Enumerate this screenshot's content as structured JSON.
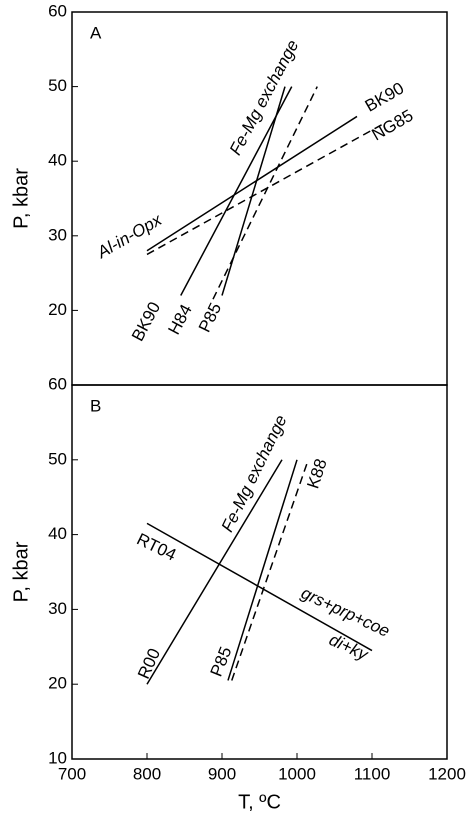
{
  "chart_data": [
    {
      "type": "line",
      "label": "A",
      "ylabel": "P, kbar",
      "xlim": [
        700,
        1200
      ],
      "ylim": [
        10,
        60
      ],
      "yticks": [
        20,
        30,
        40,
        50,
        60
      ],
      "annotations": [
        "Fe-Mg exchange",
        "Al-in-Opx"
      ],
      "series": [
        {
          "name": "BK90",
          "color": "#000000",
          "dashed": false,
          "x": [
            845,
            993
          ],
          "values": [
            22,
            50
          ]
        },
        {
          "name": "H84",
          "color": "#000000",
          "dashed": true,
          "x": [
            888,
            1027
          ],
          "values": [
            21.5,
            50
          ]
        },
        {
          "name": "P85",
          "color": "#000000",
          "dashed": false,
          "x": [
            900,
            984
          ],
          "values": [
            22,
            50
          ]
        },
        {
          "name": "BK90",
          "color": "#000000",
          "dashed": false,
          "x": [
            800,
            1080
          ],
          "values": [
            28,
            46
          ]
        },
        {
          "name": "NG85",
          "color": "#000000",
          "dashed": true,
          "x": [
            800,
            1115
          ],
          "values": [
            27.5,
            45
          ]
        }
      ]
    },
    {
      "type": "line",
      "label": "B",
      "ylabel": "P, kbar",
      "xlabel": "T, ºC",
      "xlim": [
        700,
        1200
      ],
      "xticks": [
        700,
        800,
        900,
        1000,
        1100,
        1200
      ],
      "ylim": [
        10,
        60
      ],
      "yticks": [
        10,
        20,
        30,
        40,
        50,
        60
      ],
      "annotations": [
        "Fe-Mg exchange",
        "grs+prp+coe",
        "di+ky"
      ],
      "series": [
        {
          "name": "R00",
          "color": "#000000",
          "dashed": false,
          "x": [
            800,
            980
          ],
          "values": [
            20,
            50
          ]
        },
        {
          "name": "P85",
          "color": "#000000",
          "dashed": false,
          "x": [
            908,
            1000
          ],
          "values": [
            20.5,
            50
          ]
        },
        {
          "name": "K88",
          "color": "#000000",
          "dashed": true,
          "x": [
            913,
            1015
          ],
          "values": [
            20.5,
            50
          ]
        },
        {
          "name": "RT04",
          "color": "#000000",
          "dashed": false,
          "x": [
            800,
            1100
          ],
          "values": [
            41.5,
            24.5
          ]
        }
      ]
    }
  ]
}
